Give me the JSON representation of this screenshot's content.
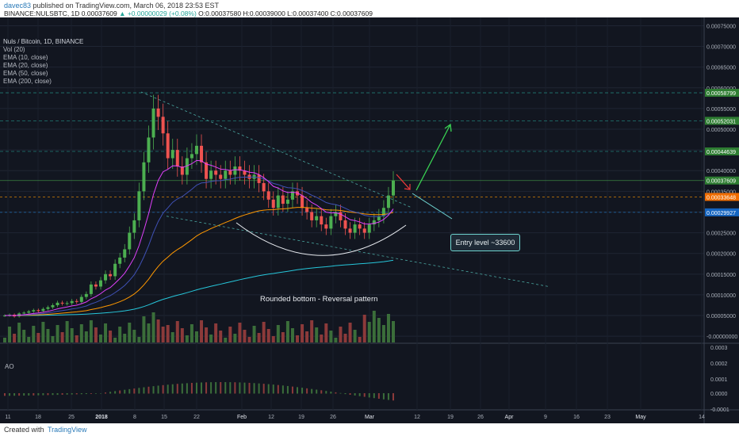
{
  "header": {
    "author": "davec83",
    "published": "published on TradingView.com, March 06, 2018 23:53 EST",
    "symbol_line": "BINANCE:NULSBTC, 1D  0.00037609",
    "change": "▲ +0.00000029 (+0.08%)",
    "ohlc": "O:0.00037580  H:0.00039000  L:0.00037400  C:0.00037609"
  },
  "legend": {
    "title": "Nuls / Bitcoin, 1D, BINANCE",
    "items": [
      "Vol (20)",
      "EMA (10, close)",
      "EMA (20, close)",
      "EMA (50, close)",
      "EMA (200, close)"
    ]
  },
  "ao_label": "AO",
  "annotations": {
    "entry": "Entry level ~33600",
    "rounded": "Rounded bottom - Reversal pattern"
  },
  "footer": {
    "created": "Created with",
    "brand": "TradingView"
  },
  "colors": {
    "background": "#121620",
    "up": "#4caf50",
    "down": "#ef5350",
    "ema10": "#e040fb",
    "ema20": "#3f51b5",
    "ema50": "#ff9800",
    "ema200": "#26c6da",
    "green_tag": "#2e7d32",
    "blue_tag": "#1565c0",
    "orange_tag": "#ef6c00"
  },
  "chart_data": {
    "type": "candlestick",
    "title": "Nuls / Bitcoin, 1D, BINANCE",
    "price_axis": [
      "0.00075000",
      "0.00070000",
      "0.00065000",
      "0.00060000",
      "0.00055000",
      "0.00050000",
      "0.00045000",
      "0.00040000",
      "0.00035000",
      "0.00030000",
      "0.00025000",
      "0.00020000",
      "0.00015000",
      "0.00010000",
      "0.00005000",
      "0.00000000"
    ],
    "ao_axis": [
      "0.0003",
      "0.0002",
      "0.0001",
      "0.0000",
      "-0.0001"
    ],
    "x_ticks": [
      "11",
      "18",
      "25",
      "2018",
      "8",
      "15",
      "22",
      "Feb",
      "12",
      "19",
      "26",
      "Mar",
      "12",
      "19",
      "26",
      "Apr",
      "9",
      "16",
      "23",
      "May",
      "14"
    ],
    "price_tags": [
      {
        "value": "0.00058799",
        "color": "green"
      },
      {
        "value": "0.00052031",
        "color": "green"
      },
      {
        "value": "0.00044639",
        "color": "green"
      },
      {
        "value": "0.00037609",
        "color": "green"
      },
      {
        "value": "0.00033648",
        "color": "orange"
      },
      {
        "value": "0.00029927",
        "color": "blue"
      }
    ],
    "ylim": [
      0,
      0.00076
    ]
  }
}
